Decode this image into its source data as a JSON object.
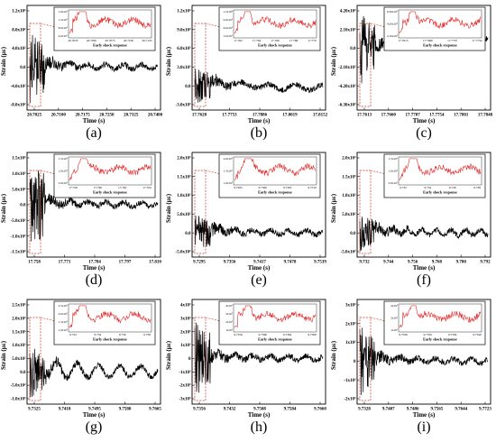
{
  "figure": {
    "inset_caption": "Early shock response",
    "ylabel": "Strain (με)",
    "xlabel": "Time (s)"
  },
  "colors": {
    "main_trace": "#000000",
    "inset_trace": "#e02020",
    "inset_markers": "#f07a7a",
    "dashed_box": "#d03020"
  },
  "chart_data": [
    {
      "id": "a",
      "label": "(a)",
      "type": "line",
      "xticks": [
        "20.7025",
        "20.7100",
        "20.7175",
        "20.7250",
        "20.7325",
        "20.7400"
      ],
      "yticks": [
        "-8.0x10²",
        "-4.0x10²",
        "0.0",
        "4.0x10²",
        "8.0x10²",
        "1.2x10³"
      ],
      "xlim": [
        20.6995,
        20.742
      ],
      "ylim": [
        -1000,
        1300
      ],
      "inset": {
        "yticks": [
          "1.6x10³",
          "1.2x10³",
          "8.0x10²",
          "4.0x10²"
        ],
        "xticks": [
          "20.7025",
          "20.7050",
          "20.7075",
          "20.7100",
          "20.7125"
        ]
      }
    },
    {
      "id": "b",
      "label": "(b)",
      "type": "line",
      "xticks": [
        "17.7620",
        "17.7753",
        "17.7886",
        "17.8019",
        "17.8152"
      ],
      "yticks": [
        "-3.0x10³",
        "0.0",
        "3.0x10³",
        "6.0x10³",
        "9.0x10³",
        "1.2x10⁴"
      ],
      "xlim": [
        17.7585,
        17.819
      ],
      "ylim": [
        -4500,
        12800
      ],
      "inset": {
        "yticks": [
          "1.2x10⁴",
          "9.0x10³",
          "6.0x10³",
          "3.0x10³"
        ],
        "xticks": [
          "17.762",
          "17.764",
          "17.766",
          "17.768",
          "17.770"
        ]
      }
    },
    {
      "id": "c",
      "label": "(c)",
      "type": "line",
      "xticks": [
        "17.7613",
        "17.7660",
        "17.7707",
        "17.7754",
        "17.7801",
        "17.7848"
      ],
      "yticks": [
        "-6.30x10³",
        "-4.20x10³",
        "-2.10x10³",
        "0.0",
        "2.10x10³",
        "4.20x10³"
      ],
      "xlim": [
        17.7595,
        17.786
      ],
      "ylim": [
        -6800,
        5200
      ],
      "inset": {
        "yticks": [
          "6.30x10³",
          "4.20x10³",
          "2.10x10³"
        ],
        "xticks": [
          "17.7613",
          "17.7660",
          "17.7707",
          "17.7754"
        ]
      }
    },
    {
      "id": "d",
      "label": "(d)",
      "type": "line",
      "xticks": [
        "17.758",
        "17.771",
        "17.784",
        "17.797",
        "17.810"
      ],
      "yticks": [
        "-1.5x10³",
        "-1.0x10³",
        "-5.0x10²",
        "0.0",
        "5.0x10²",
        "1.0x10³",
        "1.5x10³"
      ],
      "xlim": [
        17.7545,
        17.815
      ],
      "ylim": [
        -1600,
        1600
      ],
      "inset": {
        "yticks": [
          "1.5x10³",
          "1.0x10³",
          "5.0x10²"
        ],
        "xticks": [
          "17.758",
          "17.760",
          "17.762",
          "17.764"
        ]
      }
    },
    {
      "id": "e",
      "label": "(e)",
      "type": "line",
      "xticks": [
        "9.7295",
        "9.7356",
        "9.7417",
        "9.7478",
        "9.7539"
      ],
      "yticks": [
        "-5.0x10²",
        "0.0",
        "5.0x10²",
        "1.0x10³",
        "1.5x10³",
        "2.0x10³"
      ],
      "xlim": [
        9.728,
        9.757
      ],
      "ylim": [
        -700,
        2300
      ],
      "inset": {
        "yticks": [
          "2.0x10³",
          "1.5x10³",
          "1.0x10³"
        ],
        "xticks": [
          "9.7295",
          "9.7300",
          "9.7305",
          "9.7310"
        ]
      }
    },
    {
      "id": "f",
      "label": "(f)",
      "type": "line",
      "xticks": [
        "9.732",
        "9.744",
        "9.756",
        "9.768",
        "9.780",
        "9.792"
      ],
      "yticks": [
        "-5.0x10²",
        "0.0",
        "5.0x10²",
        "1.0x10³",
        "1.5x10³",
        "2.0x10³"
      ],
      "xlim": [
        9.729,
        9.795
      ],
      "ylim": [
        -700,
        2100
      ],
      "inset": {
        "yticks": [
          "1.5x10³",
          "1.0x10³",
          "5.0x10²"
        ],
        "xticks": [
          "9.732",
          "9.734",
          "9.736",
          "9.738"
        ]
      }
    },
    {
      "id": "g",
      "label": "(g)",
      "type": "line",
      "xticks": [
        "9.7325",
        "9.7410",
        "9.7495",
        "9.7580",
        "9.7665"
      ],
      "yticks": [
        "-1.0x10³",
        "-5.0x10²",
        "0.0",
        "5.0x10²",
        "1.0x10³",
        "1.5x10³",
        "2.0x10³",
        "2.5x10³"
      ],
      "xlim": [
        9.73,
        9.77
      ],
      "ylim": [
        -1100,
        2700
      ],
      "inset": {
        "yticks": [
          "2.5x10³",
          "2.0x10³",
          "1.5x10³",
          "1.0x10³"
        ],
        "xticks": [
          "9.732",
          "9.734",
          "9.736",
          "9.738"
        ]
      }
    },
    {
      "id": "h",
      "label": "(h)",
      "type": "line",
      "xticks": [
        "9.7356",
        "9.7432",
        "9.7508",
        "9.7584",
        "9.7660"
      ],
      "yticks": [
        "-3x10³",
        "-2x10³",
        "-1x10³",
        "0",
        "1x10³",
        "2x10³",
        "3x10³",
        "4x10³"
      ],
      "xlim": [
        9.733,
        9.768
      ],
      "ylim": [
        -3300,
        4300
      ],
      "inset": {
        "yticks": [
          "4x10³",
          "3x10³",
          "2x10³",
          "1x10³"
        ],
        "xticks": [
          "9.7356",
          "9.7360",
          "9.7364",
          "9.7368"
        ]
      }
    },
    {
      "id": "i",
      "label": "(i)",
      "type": "line",
      "xticks": [
        "9.7328",
        "9.7407",
        "9.7486",
        "9.7565",
        "9.7644",
        "9.7723"
      ],
      "yticks": [
        "-2x10³",
        "-1x10³",
        "0",
        "1x10³",
        "2x10³",
        "3x10³"
      ],
      "xlim": [
        9.7305,
        9.774
      ],
      "ylim": [
        -2400,
        3300
      ],
      "inset": {
        "yticks": [
          "3x10³",
          "2x10³",
          "1x10³"
        ],
        "xticks": [
          "9.7328",
          "9.7332",
          "9.7336",
          "9.7340"
        ]
      }
    }
  ]
}
